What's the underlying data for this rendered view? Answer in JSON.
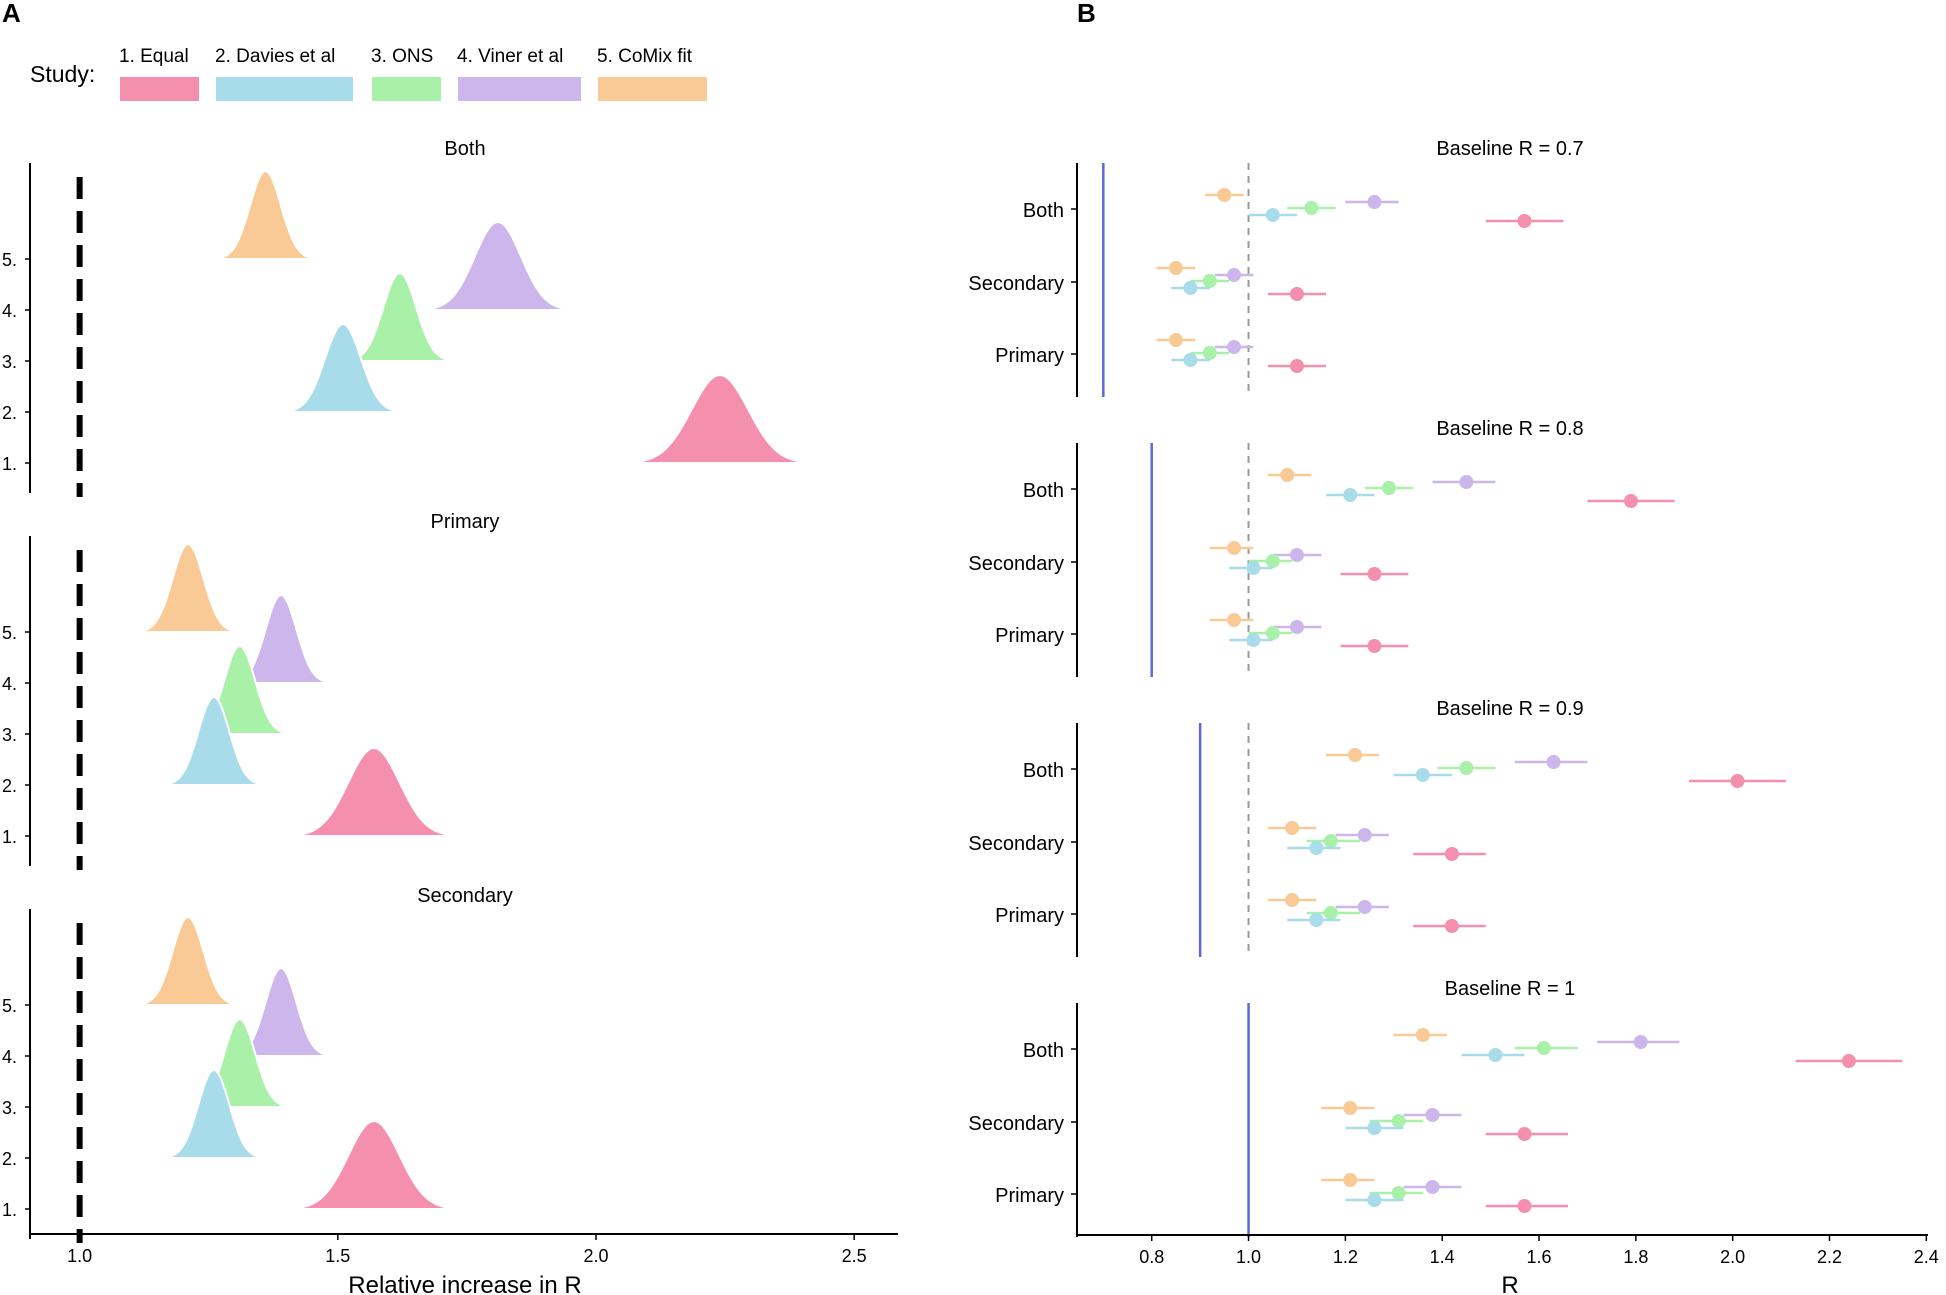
{
  "panel_labels": {
    "a": "A",
    "b": "B"
  },
  "legend": {
    "title": "Study:",
    "entries": [
      {
        "label": "1. Equal",
        "color": "#f58fae"
      },
      {
        "label": "2. Davies et al",
        "color": "#a8dcea"
      },
      {
        "label": "3. ONS",
        "color": "#a9f0a9"
      },
      {
        "label": "4. Viner et al",
        "color": "#cdb6ec"
      },
      {
        "label": "5. CoMix fit",
        "color": "#f9c996"
      }
    ]
  },
  "chart_data": [
    {
      "type": "ridgeline",
      "panel": "A",
      "xlabel": "Relative increase in R",
      "xlim": [
        0.9,
        2.55
      ],
      "xticks": [
        1.0,
        1.5,
        2.0,
        2.5
      ],
      "xtick_labels": [
        "1.0",
        "1.5",
        "2.0",
        "2.5"
      ],
      "ytick_labels": [
        "1.",
        "2.",
        "3.",
        "4.",
        "5."
      ],
      "reference_line": 1.0,
      "facets": [
        {
          "title": "Both",
          "series": [
            {
              "name": "1. Equal",
              "mean": 2.24,
              "sd": 0.055
            },
            {
              "name": "2. Davies et al",
              "mean": 1.51,
              "sd": 0.035
            },
            {
              "name": "3. ONS",
              "mean": 1.62,
              "sd": 0.032
            },
            {
              "name": "4. Viner et al",
              "mean": 1.81,
              "sd": 0.045
            },
            {
              "name": "5. CoMix fit",
              "mean": 1.36,
              "sd": 0.03
            }
          ]
        },
        {
          "title": "Primary",
          "series": [
            {
              "name": "1. Equal",
              "mean": 1.57,
              "sd": 0.05
            },
            {
              "name": "2. Davies et al",
              "mean": 1.26,
              "sd": 0.03
            },
            {
              "name": "3. ONS",
              "mean": 1.31,
              "sd": 0.03
            },
            {
              "name": "4. Viner et al",
              "mean": 1.39,
              "sd": 0.03
            },
            {
              "name": "5. CoMix fit",
              "mean": 1.21,
              "sd": 0.03
            }
          ]
        },
        {
          "title": "Secondary",
          "series": [
            {
              "name": "1. Equal",
              "mean": 1.57,
              "sd": 0.05
            },
            {
              "name": "2. Davies et al",
              "mean": 1.26,
              "sd": 0.03
            },
            {
              "name": "3. ONS",
              "mean": 1.31,
              "sd": 0.03
            },
            {
              "name": "4. Viner et al",
              "mean": 1.39,
              "sd": 0.03
            },
            {
              "name": "5. CoMix fit",
              "mean": 1.21,
              "sd": 0.03
            }
          ]
        }
      ]
    },
    {
      "type": "pointrange",
      "panel": "B",
      "xlabel": "R",
      "xlim": [
        0.625,
        2.42
      ],
      "xticks": [
        0.8,
        1.0,
        1.2,
        1.4,
        1.6,
        1.8,
        2.0,
        2.2,
        2.4
      ],
      "xtick_labels": [
        "0.8",
        "1.0",
        "1.2",
        "1.4",
        "1.6",
        "1.8",
        "2.0",
        "2.2",
        "2.4"
      ],
      "reference_line": 1.0,
      "facets": [
        {
          "title": "Baseline R = 0.7",
          "baseline": 0.7,
          "groups": [
            {
              "label": "Both",
              "points": [
                {
                  "study": "5. CoMix fit",
                  "value": 0.95,
                  "low": 0.91,
                  "high": 0.99
                },
                {
                  "study": "4. Viner et al",
                  "value": 1.26,
                  "low": 1.2,
                  "high": 1.31
                },
                {
                  "study": "3. ONS",
                  "value": 1.13,
                  "low": 1.08,
                  "high": 1.18
                },
                {
                  "study": "2. Davies et al",
                  "value": 1.05,
                  "low": 1.0,
                  "high": 1.1
                },
                {
                  "study": "1. Equal",
                  "value": 1.57,
                  "low": 1.49,
                  "high": 1.65
                }
              ]
            },
            {
              "label": "Secondary",
              "points": [
                {
                  "study": "5. CoMix fit",
                  "value": 0.85,
                  "low": 0.81,
                  "high": 0.89
                },
                {
                  "study": "4. Viner et al",
                  "value": 0.97,
                  "low": 0.93,
                  "high": 1.01
                },
                {
                  "study": "3. ONS",
                  "value": 0.92,
                  "low": 0.88,
                  "high": 0.96
                },
                {
                  "study": "2. Davies et al",
                  "value": 0.88,
                  "low": 0.84,
                  "high": 0.92
                },
                {
                  "study": "1. Equal",
                  "value": 1.1,
                  "low": 1.04,
                  "high": 1.16
                }
              ]
            },
            {
              "label": "Primary",
              "points": [
                {
                  "study": "5. CoMix fit",
                  "value": 0.85,
                  "low": 0.81,
                  "high": 0.89
                },
                {
                  "study": "4. Viner et al",
                  "value": 0.97,
                  "low": 0.93,
                  "high": 1.01
                },
                {
                  "study": "3. ONS",
                  "value": 0.92,
                  "low": 0.88,
                  "high": 0.96
                },
                {
                  "study": "2. Davies et al",
                  "value": 0.88,
                  "low": 0.84,
                  "high": 0.92
                },
                {
                  "study": "1. Equal",
                  "value": 1.1,
                  "low": 1.04,
                  "high": 1.16
                }
              ]
            }
          ]
        },
        {
          "title": "Baseline R = 0.8",
          "baseline": 0.8,
          "groups": [
            {
              "label": "Both",
              "points": [
                {
                  "study": "5. CoMix fit",
                  "value": 1.08,
                  "low": 1.04,
                  "high": 1.13
                },
                {
                  "study": "4. Viner et al",
                  "value": 1.45,
                  "low": 1.38,
                  "high": 1.51
                },
                {
                  "study": "3. ONS",
                  "value": 1.29,
                  "low": 1.24,
                  "high": 1.34
                },
                {
                  "study": "2. Davies et al",
                  "value": 1.21,
                  "low": 1.16,
                  "high": 1.26
                },
                {
                  "study": "1. Equal",
                  "value": 1.79,
                  "low": 1.7,
                  "high": 1.88
                }
              ]
            },
            {
              "label": "Secondary",
              "points": [
                {
                  "study": "5. CoMix fit",
                  "value": 0.97,
                  "low": 0.92,
                  "high": 1.01
                },
                {
                  "study": "4. Viner et al",
                  "value": 1.1,
                  "low": 1.05,
                  "high": 1.15
                },
                {
                  "study": "3. ONS",
                  "value": 1.05,
                  "low": 1.0,
                  "high": 1.09
                },
                {
                  "study": "2. Davies et al",
                  "value": 1.01,
                  "low": 0.96,
                  "high": 1.05
                },
                {
                  "study": "1. Equal",
                  "value": 1.26,
                  "low": 1.19,
                  "high": 1.33
                }
              ]
            },
            {
              "label": "Primary",
              "points": [
                {
                  "study": "5. CoMix fit",
                  "value": 0.97,
                  "low": 0.92,
                  "high": 1.01
                },
                {
                  "study": "4. Viner et al",
                  "value": 1.1,
                  "low": 1.05,
                  "high": 1.15
                },
                {
                  "study": "3. ONS",
                  "value": 1.05,
                  "low": 1.0,
                  "high": 1.09
                },
                {
                  "study": "2. Davies et al",
                  "value": 1.01,
                  "low": 0.96,
                  "high": 1.05
                },
                {
                  "study": "1. Equal",
                  "value": 1.26,
                  "low": 1.19,
                  "high": 1.33
                }
              ]
            }
          ]
        },
        {
          "title": "Baseline R = 0.9",
          "baseline": 0.9,
          "groups": [
            {
              "label": "Both",
              "points": [
                {
                  "study": "5. CoMix fit",
                  "value": 1.22,
                  "low": 1.16,
                  "high": 1.27
                },
                {
                  "study": "4. Viner et al",
                  "value": 1.63,
                  "low": 1.55,
                  "high": 1.7
                },
                {
                  "study": "3. ONS",
                  "value": 1.45,
                  "low": 1.39,
                  "high": 1.51
                },
                {
                  "study": "2. Davies et al",
                  "value": 1.36,
                  "low": 1.3,
                  "high": 1.42
                },
                {
                  "study": "1. Equal",
                  "value": 2.01,
                  "low": 1.91,
                  "high": 2.11
                }
              ]
            },
            {
              "label": "Secondary",
              "points": [
                {
                  "study": "5. CoMix fit",
                  "value": 1.09,
                  "low": 1.04,
                  "high": 1.14
                },
                {
                  "study": "4. Viner et al",
                  "value": 1.24,
                  "low": 1.18,
                  "high": 1.29
                },
                {
                  "study": "3. ONS",
                  "value": 1.17,
                  "low": 1.12,
                  "high": 1.23
                },
                {
                  "study": "2. Davies et al",
                  "value": 1.14,
                  "low": 1.08,
                  "high": 1.19
                },
                {
                  "study": "1. Equal",
                  "value": 1.42,
                  "low": 1.34,
                  "high": 1.49
                }
              ]
            },
            {
              "label": "Primary",
              "points": [
                {
                  "study": "5. CoMix fit",
                  "value": 1.09,
                  "low": 1.04,
                  "high": 1.14
                },
                {
                  "study": "4. Viner et al",
                  "value": 1.24,
                  "low": 1.18,
                  "high": 1.29
                },
                {
                  "study": "3. ONS",
                  "value": 1.17,
                  "low": 1.12,
                  "high": 1.23
                },
                {
                  "study": "2. Davies et al",
                  "value": 1.14,
                  "low": 1.08,
                  "high": 1.19
                },
                {
                  "study": "1. Equal",
                  "value": 1.42,
                  "low": 1.34,
                  "high": 1.49
                }
              ]
            }
          ]
        },
        {
          "title": "Baseline R = 1",
          "baseline": 1.0,
          "groups": [
            {
              "label": "Both",
              "points": [
                {
                  "study": "5. CoMix fit",
                  "value": 1.36,
                  "low": 1.3,
                  "high": 1.41
                },
                {
                  "study": "4. Viner et al",
                  "value": 1.81,
                  "low": 1.72,
                  "high": 1.89
                },
                {
                  "study": "3. ONS",
                  "value": 1.61,
                  "low": 1.55,
                  "high": 1.68
                },
                {
                  "study": "2. Davies et al",
                  "value": 1.51,
                  "low": 1.44,
                  "high": 1.57
                },
                {
                  "study": "1. Equal",
                  "value": 2.24,
                  "low": 2.13,
                  "high": 2.35
                }
              ]
            },
            {
              "label": "Secondary",
              "points": [
                {
                  "study": "5. CoMix fit",
                  "value": 1.21,
                  "low": 1.15,
                  "high": 1.26
                },
                {
                  "study": "4. Viner et al",
                  "value": 1.38,
                  "low": 1.32,
                  "high": 1.44
                },
                {
                  "study": "3. ONS",
                  "value": 1.31,
                  "low": 1.25,
                  "high": 1.36
                },
                {
                  "study": "2. Davies et al",
                  "value": 1.26,
                  "low": 1.2,
                  "high": 1.32
                },
                {
                  "study": "1. Equal",
                  "value": 1.57,
                  "low": 1.49,
                  "high": 1.66
                }
              ]
            },
            {
              "label": "Primary",
              "points": [
                {
                  "study": "5. CoMix fit",
                  "value": 1.21,
                  "low": 1.15,
                  "high": 1.26
                },
                {
                  "study": "4. Viner et al",
                  "value": 1.38,
                  "low": 1.32,
                  "high": 1.44
                },
                {
                  "study": "3. ONS",
                  "value": 1.31,
                  "low": 1.25,
                  "high": 1.36
                },
                {
                  "study": "2. Davies et al",
                  "value": 1.26,
                  "low": 1.2,
                  "high": 1.32
                },
                {
                  "study": "1. Equal",
                  "value": 1.57,
                  "low": 1.49,
                  "high": 1.66
                }
              ]
            }
          ]
        }
      ]
    }
  ]
}
